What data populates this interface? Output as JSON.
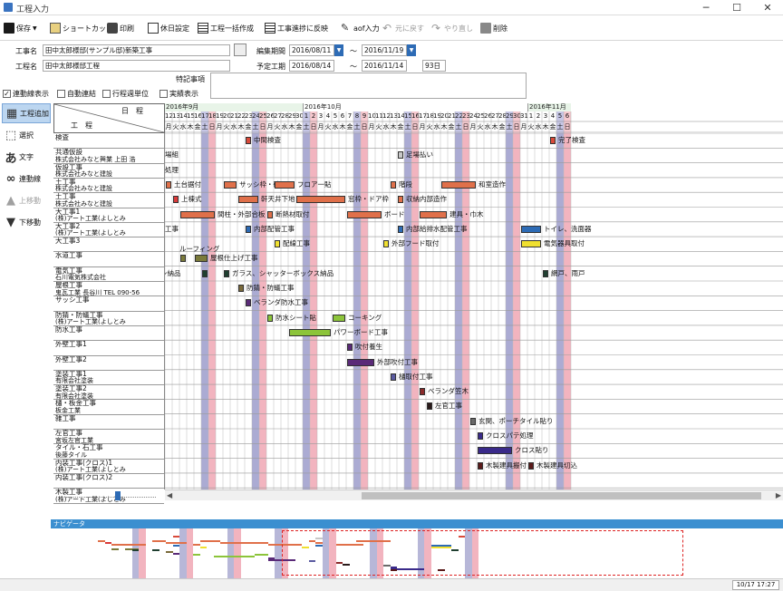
{
  "window": {
    "title": "工程入力",
    "min": "─",
    "max": "☐",
    "close": "✕"
  },
  "toolbar": {
    "save": "保存",
    "shortcut": "ショートカット",
    "print": "印刷",
    "holiday": "休日設定",
    "bulk": "工程一括作成",
    "reflect": "工事進捗に反映",
    "aof": "aof入力",
    "undo": "元に戻す",
    "redo": "やり直し",
    "delete": "削除"
  },
  "form": {
    "kouji_mei_label": "工事名",
    "kouji_mei_value": "田中太郎様邸(サンプル邸)新築工事",
    "koutei_mei_label": "工程名",
    "koutei_mei_value": "田中太郎様邸工程",
    "edit_period_label": "編集期間",
    "edit_start": "2016/08/11",
    "edit_end": "2016/11/19",
    "plan_period_label": "予定工期",
    "plan_start": "2016/08/14",
    "plan_end": "2016/11/14",
    "days": "93日",
    "tilde": "～",
    "notes_label": "特記事項",
    "notes_value": ""
  },
  "options": [
    {
      "label": "連動線表示",
      "checked": true
    },
    {
      "label": "自動連結",
      "checked": false
    },
    {
      "label": "行程週単位",
      "checked": false
    },
    {
      "label": "実績表示",
      "checked": false
    }
  ],
  "sidepanel": [
    {
      "label": "工程追加",
      "icon": "add-process-icon",
      "disabled": false
    },
    {
      "label": "選択",
      "icon": "select-icon",
      "disabled": false
    },
    {
      "label": "文字",
      "icon": "text-icon",
      "disabled": false
    },
    {
      "label": "連動線",
      "icon": "link-line-icon",
      "disabled": false
    },
    {
      "label": "上移動",
      "icon": "move-up-icon",
      "disabled": true
    },
    {
      "label": "下移動",
      "icon": "move-down-icon",
      "disabled": false
    }
  ],
  "grid_header": {
    "schedule": "日　程",
    "process": "工　程"
  },
  "months": [
    {
      "label": "2016年9月",
      "day_offset": 0
    },
    {
      "label": "2016年10月",
      "day_offset": 19
    },
    {
      "label": "2016年11月",
      "day_offset": 50
    }
  ],
  "days": [
    {
      "d": "12",
      "w": "月"
    },
    {
      "d": "13",
      "w": "火"
    },
    {
      "d": "14",
      "w": "水"
    },
    {
      "d": "15",
      "w": "木"
    },
    {
      "d": "16",
      "w": "金"
    },
    {
      "d": "17",
      "w": "土"
    },
    {
      "d": "18",
      "w": "日"
    },
    {
      "d": "19",
      "w": "月"
    },
    {
      "d": "20",
      "w": "火"
    },
    {
      "d": "21",
      "w": "水"
    },
    {
      "d": "22",
      "w": "木"
    },
    {
      "d": "23",
      "w": "金"
    },
    {
      "d": "24",
      "w": "土"
    },
    {
      "d": "25",
      "w": "日"
    },
    {
      "d": "26",
      "w": "月"
    },
    {
      "d": "27",
      "w": "火"
    },
    {
      "d": "28",
      "w": "水"
    },
    {
      "d": "29",
      "w": "木"
    },
    {
      "d": "30",
      "w": "金"
    },
    {
      "d": "1",
      "w": "土"
    },
    {
      "d": "2",
      "w": "日"
    },
    {
      "d": "3",
      "w": "月"
    },
    {
      "d": "4",
      "w": "火"
    },
    {
      "d": "5",
      "w": "水"
    },
    {
      "d": "6",
      "w": "木"
    },
    {
      "d": "7",
      "w": "金"
    },
    {
      "d": "8",
      "w": "土"
    },
    {
      "d": "9",
      "w": "日"
    },
    {
      "d": "10",
      "w": "月"
    },
    {
      "d": "11",
      "w": "火"
    },
    {
      "d": "12",
      "w": "水"
    },
    {
      "d": "13",
      "w": "木"
    },
    {
      "d": "14",
      "w": "金"
    },
    {
      "d": "15",
      "w": "土"
    },
    {
      "d": "16",
      "w": "日"
    },
    {
      "d": "17",
      "w": "月"
    },
    {
      "d": "18",
      "w": "火"
    },
    {
      "d": "19",
      "w": "水"
    },
    {
      "d": "20",
      "w": "木"
    },
    {
      "d": "21",
      "w": "金"
    },
    {
      "d": "22",
      "w": "土"
    },
    {
      "d": "23",
      "w": "日"
    },
    {
      "d": "24",
      "w": "月"
    },
    {
      "d": "25",
      "w": "火"
    },
    {
      "d": "26",
      "w": "水"
    },
    {
      "d": "27",
      "w": "木"
    },
    {
      "d": "28",
      "w": "金"
    },
    {
      "d": "29",
      "w": "土"
    },
    {
      "d": "30",
      "w": "日"
    },
    {
      "d": "31",
      "w": "月"
    },
    {
      "d": "1",
      "w": "火"
    },
    {
      "d": "2",
      "w": "水"
    },
    {
      "d": "3",
      "w": "木"
    },
    {
      "d": "4",
      "w": "金"
    },
    {
      "d": "5",
      "w": "土"
    },
    {
      "d": "6",
      "w": "日"
    }
  ],
  "rows": [
    {
      "lines": [
        "検査"
      ]
    },
    {
      "lines": [
        "共通仮設",
        "株式会社みなと興業 上田 浩"
      ]
    },
    {
      "lines": [
        "仮設工事",
        "株式会社みなと建設"
      ]
    },
    {
      "lines": [
        "土工事",
        "株式会社みなと建設"
      ]
    },
    {
      "lines": [
        "土工事",
        "株式会社みなと建設"
      ]
    },
    {
      "lines": [
        "大工事1",
        "(株)アート工業(よしとみ"
      ]
    },
    {
      "lines": [
        "大工事2",
        "(株)アート工業(よしとみ"
      ]
    },
    {
      "lines": [
        "大工事3"
      ]
    },
    {
      "lines": [
        "水道工事"
      ]
    },
    {
      "lines": [
        "電気工事",
        "石川電気株式会社"
      ]
    },
    {
      "lines": [
        "屋根工事",
        "鬼瓦工業 長谷川 TEL 090-56"
      ]
    },
    {
      "lines": [
        "サッシ工事"
      ]
    },
    {
      "lines": [
        "防錆・防蟻工事",
        "(株)アート工業(よしとみ"
      ]
    },
    {
      "lines": [
        "防水工事"
      ]
    },
    {
      "lines": [
        "外壁工事1"
      ]
    },
    {
      "lines": [
        "外壁工事2"
      ]
    },
    {
      "lines": [
        "塗装工事1",
        "有限会社塗装"
      ]
    },
    {
      "lines": [
        "塗装工事2",
        "有限会社塗装"
      ]
    },
    {
      "lines": [
        "樋・板金工事",
        "板金工業"
      ]
    },
    {
      "lines": [
        "雑工事"
      ]
    },
    {
      "lines": [
        "左官工事",
        "宮坂左官工業"
      ]
    },
    {
      "lines": [
        "タイル・石工事",
        "後藤タイル"
      ]
    },
    {
      "lines": [
        "内装工事(クロス)1",
        "(株)アート工業(よしとみ"
      ]
    },
    {
      "lines": [
        "内装工事(クロス)2"
      ]
    },
    {
      "lines": [
        "木製工事",
        "(株)アート工業(よしとみ"
      ]
    }
  ],
  "tasks": [
    {
      "row": 0,
      "start": 11,
      "dur": 1,
      "color": "#d94a3a",
      "label": "中間検査",
      "lpos": "right"
    },
    {
      "row": 0,
      "start": 53,
      "dur": 1,
      "color": "#d94a3a",
      "label": "完了検査",
      "lpos": "right"
    },
    {
      "row": 1,
      "start": -2,
      "dur": 0,
      "color": "",
      "label": "場組",
      "lpos": "right"
    },
    {
      "row": 1,
      "start": 32,
      "dur": 1,
      "color": "#c8c8c8",
      "label": "足場払い",
      "lpos": "right"
    },
    {
      "row": 2,
      "start": -2,
      "dur": 0,
      "color": "",
      "label": "処理",
      "lpos": "right"
    },
    {
      "row": 3,
      "start": 0,
      "dur": 1,
      "color": "#e0704a",
      "label": "土台据付",
      "lpos": "right"
    },
    {
      "row": 3,
      "start": 8,
      "dur": 2,
      "color": "#e0704a",
      "label": "サッシ枠・破風",
      "lpos": "right"
    },
    {
      "row": 3,
      "start": 15,
      "dur": 3,
      "color": "#e0704a",
      "label": "フロア一貼",
      "lpos": "right"
    },
    {
      "row": 3,
      "start": 31,
      "dur": 1,
      "color": "#e0704a",
      "label": "階段",
      "lpos": "right"
    },
    {
      "row": 3,
      "start": 38,
      "dur": 5,
      "color": "#e0704a",
      "label": "和室造作",
      "lpos": "right"
    },
    {
      "row": 4,
      "start": 1,
      "dur": 1,
      "color": "#d93a3a",
      "label": "上棟式",
      "lpos": "right"
    },
    {
      "row": 4,
      "start": 10,
      "dur": 3,
      "color": "#e0704a",
      "label": "軒天井下地",
      "lpos": "right"
    },
    {
      "row": 4,
      "start": 18,
      "dur": 7,
      "color": "#e0704a",
      "label": "窓枠・ドア枠",
      "lpos": "right"
    },
    {
      "row": 4,
      "start": 32,
      "dur": 1,
      "color": "#e0704a",
      "label": "収納内部造作",
      "lpos": "right"
    },
    {
      "row": 5,
      "start": 2,
      "dur": 5,
      "color": "#e0704a",
      "label": "間柱・外部合板",
      "lpos": "right"
    },
    {
      "row": 5,
      "start": 14,
      "dur": 1,
      "color": "#e0704a",
      "label": "断熱材取付",
      "lpos": "right"
    },
    {
      "row": 5,
      "start": 25,
      "dur": 5,
      "color": "#e0704a",
      "label": "ボード",
      "lpos": "right"
    },
    {
      "row": 5,
      "start": 35,
      "dur": 4,
      "color": "#e0704a",
      "label": "建具・巾木",
      "lpos": "right"
    },
    {
      "row": 6,
      "start": -2,
      "dur": 0,
      "color": "",
      "label": "工事",
      "lpos": "right"
    },
    {
      "row": 6,
      "start": 11,
      "dur": 1,
      "color": "#2d6bb5",
      "label": "内部配管工事",
      "lpos": "right"
    },
    {
      "row": 6,
      "start": 32,
      "dur": 1,
      "color": "#2d6bb5",
      "label": "内部給排水配管工事",
      "lpos": "right"
    },
    {
      "row": 6,
      "start": 49,
      "dur": 3,
      "color": "#2d6bb5",
      "label": "トイレ、洗面器",
      "lpos": "right"
    },
    {
      "row": 7,
      "start": 15,
      "dur": 1,
      "color": "#f0e030",
      "label": "配線工事",
      "lpos": "right"
    },
    {
      "row": 7,
      "start": 30,
      "dur": 1,
      "color": "#f0e030",
      "label": "外部フード取付",
      "lpos": "right"
    },
    {
      "row": 7,
      "start": 49,
      "dur": 3,
      "color": "#f0e030",
      "label": "電気器具取付",
      "lpos": "right"
    },
    {
      "row": 8,
      "start": 2,
      "dur": 1,
      "color": "#7a7a3a",
      "label": "ルーフィング",
      "lpos": "above"
    },
    {
      "row": 8,
      "start": 4,
      "dur": 2,
      "color": "#7a7a3a",
      "label": "屋根仕上げ工事",
      "lpos": "right"
    },
    {
      "row": 9,
      "start": 5,
      "dur": 1,
      "color": "#1f3f30",
      "label": "サッシ納品",
      "lpos": "left"
    },
    {
      "row": 9,
      "start": 8,
      "dur": 1,
      "color": "#1f3f30",
      "label": "ガラス、シャッターボックス納品",
      "lpos": "right"
    },
    {
      "row": 9,
      "start": 52,
      "dur": 1,
      "color": "#1f3f30",
      "label": "網戸、雨戸",
      "lpos": "right"
    },
    {
      "row": 10,
      "start": 10,
      "dur": 1,
      "color": "#7a6a3a",
      "label": "防錆・防蟻工事",
      "lpos": "right"
    },
    {
      "row": 11,
      "start": 11,
      "dur": 1,
      "color": "#5a2a78",
      "label": "ベランダ防水工事",
      "lpos": "right"
    },
    {
      "row": 12,
      "start": 14,
      "dur": 1,
      "color": "#8cc43a",
      "label": "防水シート貼",
      "lpos": "right"
    },
    {
      "row": 12,
      "start": 23,
      "dur": 2,
      "color": "#8cc43a",
      "label": "コーキング",
      "lpos": "right"
    },
    {
      "row": 13,
      "start": 17,
      "dur": 6,
      "color": "#8cc43a",
      "label": "パワーボード工事",
      "lpos": "right"
    },
    {
      "row": 14,
      "start": 25,
      "dur": 1,
      "color": "#5a2a78",
      "label": "吹付養生",
      "lpos": "right"
    },
    {
      "row": 15,
      "start": 25,
      "dur": 4,
      "color": "#5a2a78",
      "label": "外部吹付工事",
      "lpos": "right"
    },
    {
      "row": 16,
      "start": 31,
      "dur": 1,
      "color": "#5a5aa0",
      "label": "樋取付工事",
      "lpos": "right"
    },
    {
      "row": 17,
      "start": 35,
      "dur": 1,
      "color": "#8a2a2a",
      "label": "ベランダ笠木",
      "lpos": "right"
    },
    {
      "row": 18,
      "start": 36,
      "dur": 1,
      "color": "#2a1a1a",
      "label": "左官工事",
      "lpos": "right"
    },
    {
      "row": 19,
      "start": 42,
      "dur": 1,
      "color": "#6a6a6a",
      "label": "玄関、ポーチタイル貼り",
      "lpos": "right"
    },
    {
      "row": 20,
      "start": 43,
      "dur": 1,
      "color": "#3a2a8a",
      "label": "クロスパテ処理",
      "lpos": "right"
    },
    {
      "row": 21,
      "start": 43,
      "dur": 5,
      "color": "#3a2a8a",
      "label": "クロス貼り",
      "lpos": "right"
    },
    {
      "row": 22,
      "start": 43,
      "dur": 1,
      "color": "#5a1a1a",
      "label": "木製建具搬付",
      "lpos": "right"
    },
    {
      "row": 22,
      "start": 50,
      "dur": 1,
      "color": "#5a1a1a",
      "label": "木製建具切込",
      "lpos": "right"
    }
  ],
  "nav": {
    "label": "ナビゲータ"
  },
  "status": {
    "time": "10/17 17:27"
  }
}
